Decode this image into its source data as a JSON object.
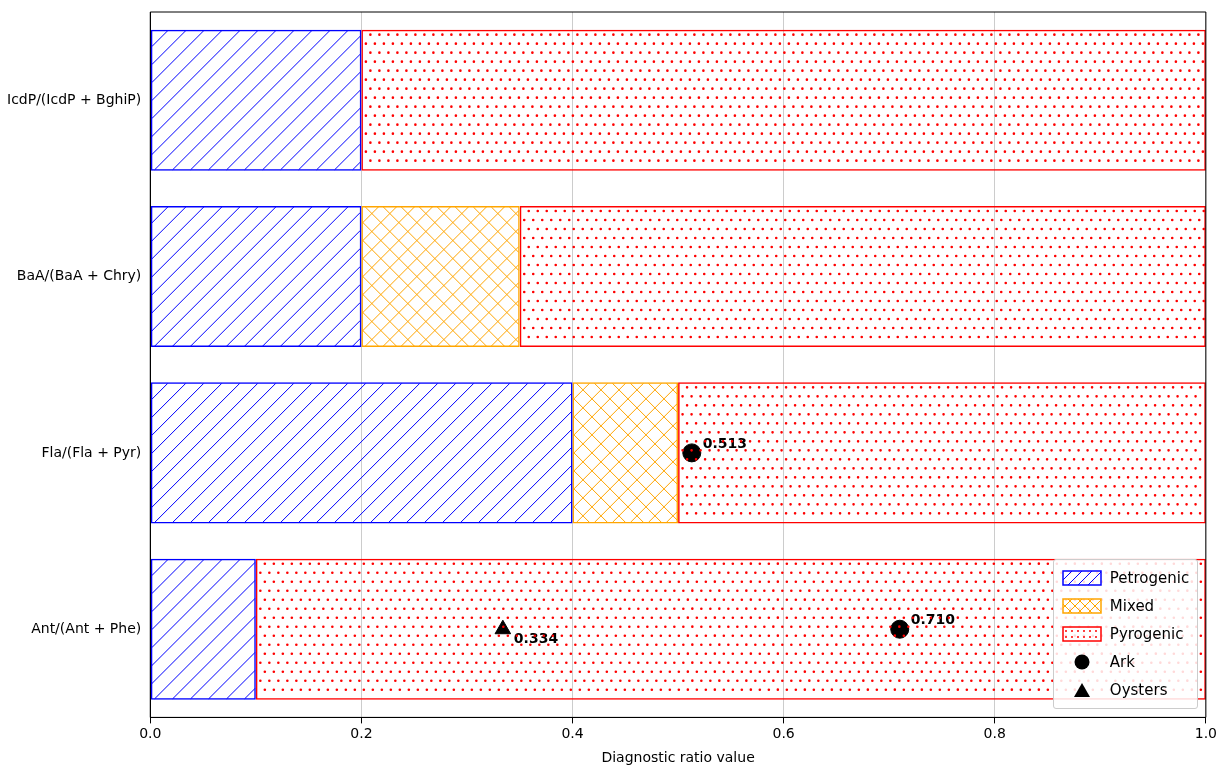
{
  "chart_data": {
    "type": "bar",
    "orientation": "horizontal",
    "stacked": true,
    "xlabel": "Diagnostic ratio value",
    "categories": [
      "IcdP/(IcdP + BghiP)",
      "BaA/(BaA + Chry)",
      "Fla/(Fla + Pyr)",
      "Ant/(Ant + Phe)"
    ],
    "series": [
      {
        "name": "Petrogenic",
        "color": "#0000ff",
        "values": [
          0.2,
          0.2,
          0.4,
          0.1
        ]
      },
      {
        "name": "Mixed",
        "color": "#ffa500",
        "values": [
          null,
          0.15,
          0.1,
          null
        ]
      },
      {
        "name": "Pyrogenic",
        "color": "#ff0000",
        "values": [
          0.8,
          0.65,
          0.5,
          0.9
        ]
      },
      {
        "name": "Ark",
        "type": "scatter",
        "color": "#000000",
        "marker": "circle",
        "values": [
          null,
          null,
          0.513,
          0.71
        ],
        "value_labels": [
          null,
          null,
          "0.513",
          "0.710"
        ]
      },
      {
        "name": "Oysters",
        "type": "scatter",
        "color": "#000000",
        "marker": "triangle",
        "values": [
          null,
          null,
          null,
          0.334
        ],
        "value_labels": [
          null,
          null,
          null,
          "0.334"
        ]
      }
    ],
    "xlim": [
      0,
      1
    ],
    "xticks": [
      {
        "value": 0,
        "label": "0.0"
      },
      {
        "value": 0.2,
        "label": "0.2"
      },
      {
        "value": 0.4,
        "label": "0.4"
      },
      {
        "value": 0.6,
        "label": "0.6"
      },
      {
        "value": 0.8,
        "label": "0.8"
      },
      {
        "value": 1,
        "label": "1.0"
      }
    ],
    "grid": "x",
    "legend": "bottom right"
  }
}
